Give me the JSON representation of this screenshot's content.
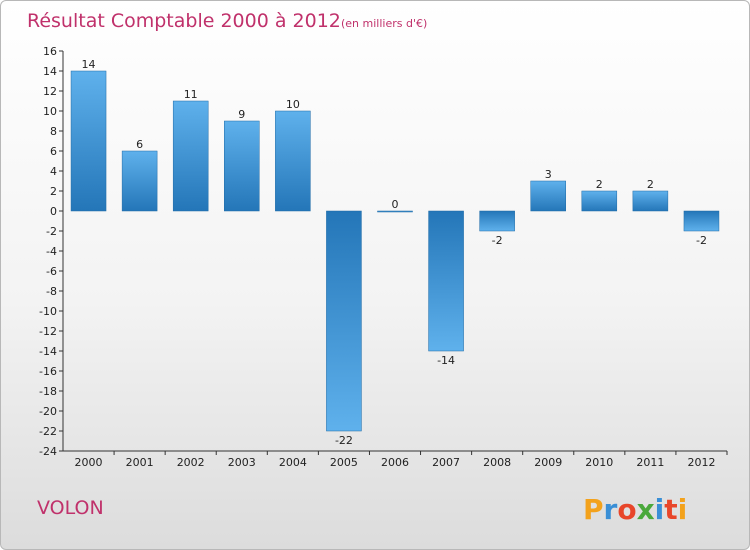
{
  "chart_data": {
    "type": "bar",
    "title": "Résultat Comptable 2000 à 2012",
    "subtitle": "(en milliers d'€)",
    "categories": [
      "2000",
      "2001",
      "2002",
      "2003",
      "2004",
      "2005",
      "2006",
      "2007",
      "2008",
      "2009",
      "2010",
      "2011",
      "2012"
    ],
    "values": [
      14,
      6,
      11,
      9,
      10,
      -22,
      0,
      -14,
      -2,
      3,
      2,
      2,
      -2
    ],
    "ylim": [
      -24,
      16
    ],
    "ytick_step": 2,
    "grid": false,
    "bar_color": "#3a8fd6"
  },
  "footer": {
    "commune": "VOLON",
    "logo_letters": [
      "P",
      "r",
      "o",
      "x",
      "i",
      "t",
      "i"
    ],
    "logo_colors": [
      "#f3a21c",
      "#3a8fd6",
      "#e8462a",
      "#4aa83b",
      "#3a8fd6",
      "#e8462a",
      "#f3a21c"
    ]
  }
}
